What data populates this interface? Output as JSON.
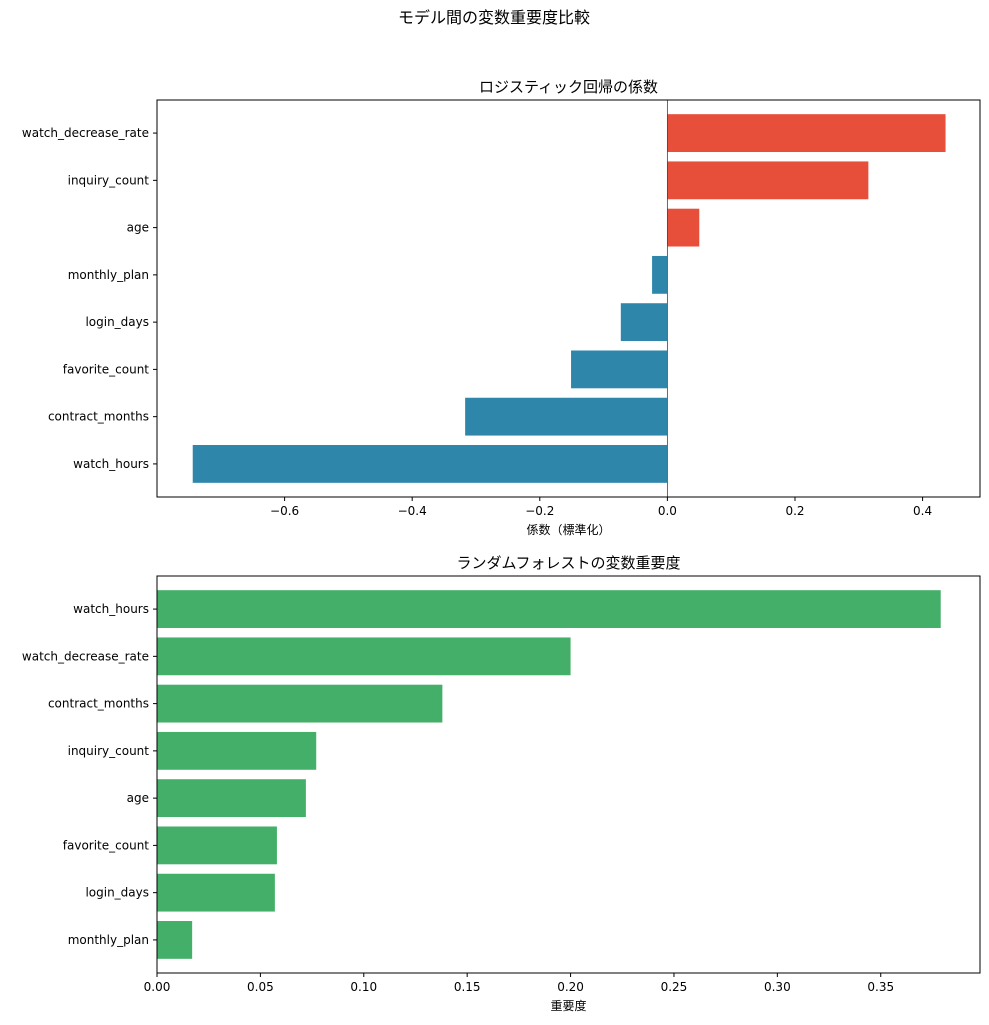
{
  "figure": {
    "suptitle": "モデル間の変数重要度比較"
  },
  "chart_data": [
    {
      "type": "bar",
      "orientation": "horizontal",
      "title": "ロジスティック回帰の係数",
      "xlabel": "係数（標準化）",
      "ylabel": "",
      "categories": [
        "watch_decrease_rate",
        "inquiry_count",
        "age",
        "monthly_plan",
        "login_days",
        "favorite_count",
        "contract_months",
        "watch_hours"
      ],
      "values": [
        0.436,
        0.315,
        0.05,
        -0.024,
        -0.073,
        -0.151,
        -0.317,
        -0.744
      ],
      "xlim": [
        -0.8,
        0.49
      ],
      "xticks": [
        -0.6,
        -0.4,
        -0.2,
        0.0,
        0.2,
        0.4
      ],
      "xtick_labels": [
        "−0.6",
        "−0.4",
        "−0.2",
        "0.0",
        "0.2",
        "0.4"
      ],
      "colors": {
        "positive": "#e74f3a",
        "negative": "#2e86ab"
      },
      "zero_line": true,
      "grid": false
    },
    {
      "type": "bar",
      "orientation": "horizontal",
      "title": "ランダムフォレストの変数重要度",
      "xlabel": "重要度",
      "ylabel": "",
      "categories": [
        "watch_hours",
        "watch_decrease_rate",
        "contract_months",
        "inquiry_count",
        "age",
        "favorite_count",
        "login_days",
        "monthly_plan"
      ],
      "values": [
        0.379,
        0.2,
        0.138,
        0.077,
        0.072,
        0.058,
        0.057,
        0.017
      ],
      "xlim": [
        0.0,
        0.398
      ],
      "xticks": [
        0.0,
        0.05,
        0.1,
        0.15,
        0.2,
        0.25,
        0.3,
        0.35
      ],
      "xtick_labels": [
        "0.00",
        "0.05",
        "0.10",
        "0.15",
        "0.20",
        "0.25",
        "0.30",
        "0.35"
      ],
      "colors": {
        "bar": "#44af69"
      },
      "grid": false
    }
  ]
}
